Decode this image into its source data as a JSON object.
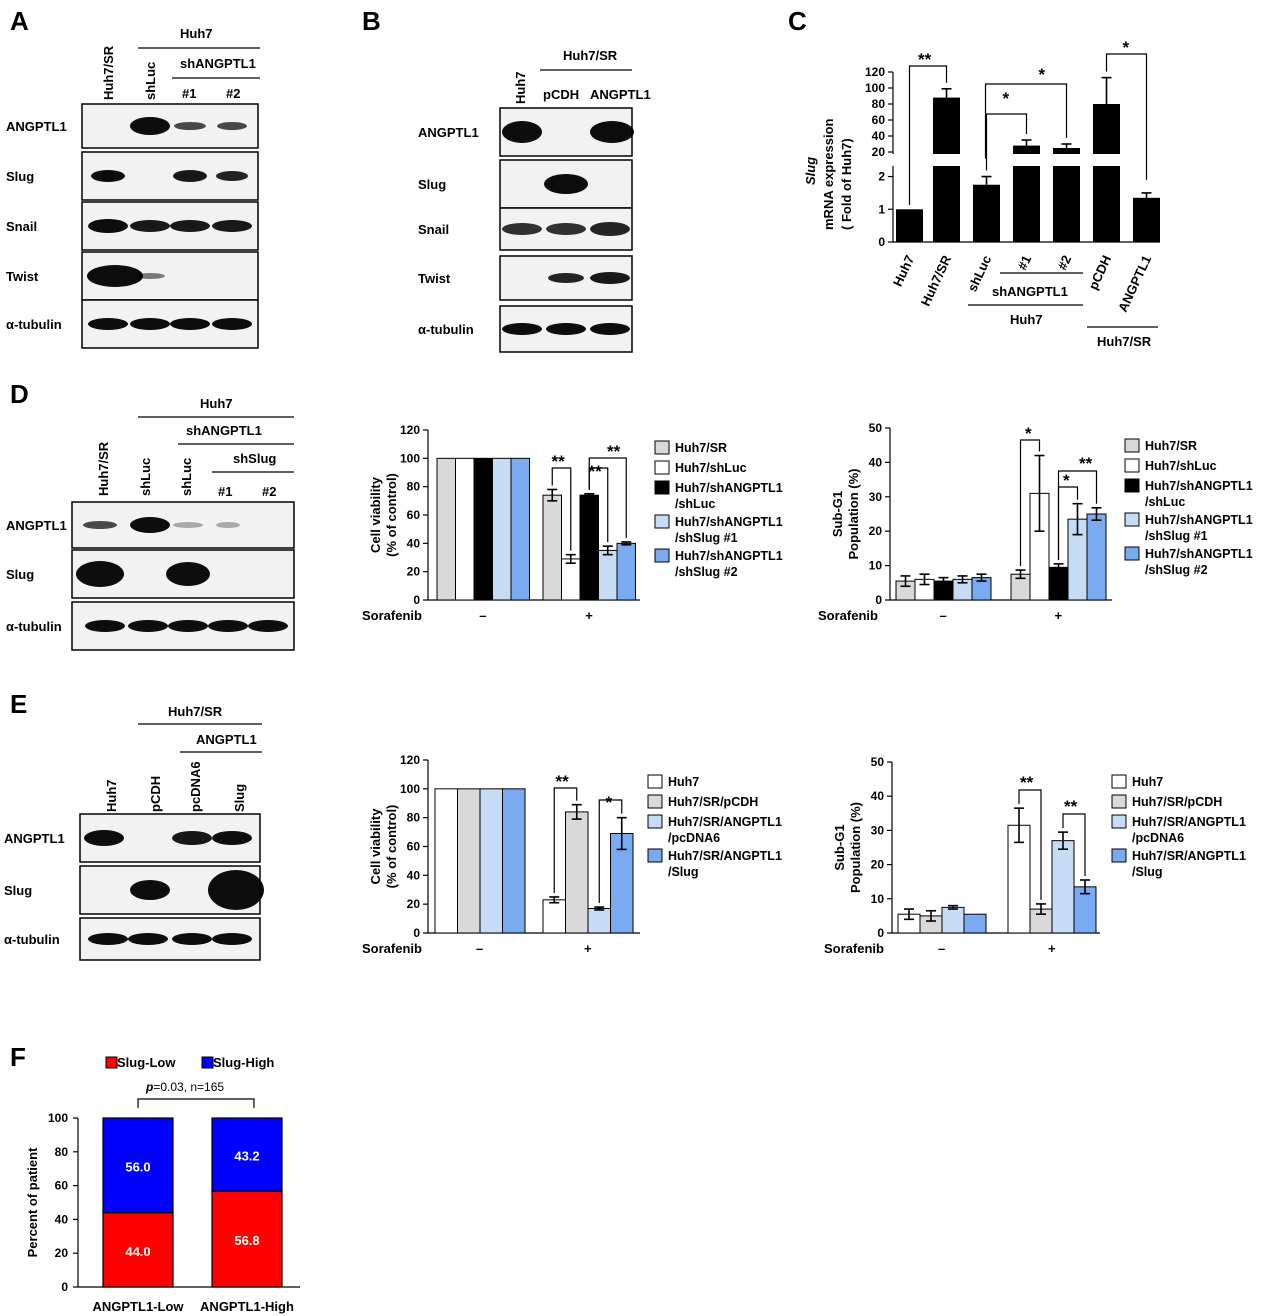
{
  "panels": {
    "A": {
      "letter": "A",
      "cell_group": "Huh7",
      "sub_group": "shANGPTL1",
      "lanes": [
        "Huh7/SR",
        "shLuc",
        "#1",
        "#2"
      ],
      "rows": [
        "ANGPTL1",
        "Slug",
        "Snail",
        "Twist",
        "α-tubulin"
      ]
    },
    "B": {
      "letter": "B",
      "cell_group": "Huh7/SR",
      "lanes": [
        "Huh7",
        "pCDH",
        "ANGPTL1"
      ],
      "rows": [
        "ANGPTL1",
        "Slug",
        "Snail",
        "Twist",
        "α-tubulin"
      ]
    },
    "D": {
      "letter": "D",
      "cell_group": "Huh7",
      "sub_group": "shANGPTL1",
      "sub_sub_group": "shSlug",
      "lanes": [
        "Huh7/SR",
        "shLuc",
        "shLuc",
        "#1",
        "#2"
      ],
      "rows": [
        "ANGPTL1",
        "Slug",
        "α-tubulin"
      ],
      "sorafenib_label": "Sorafenib",
      "minus": "–",
      "plus": "+"
    },
    "E": {
      "letter": "E",
      "cell_group": "Huh7/SR",
      "sub_group": "ANGPTL1",
      "lanes": [
        "Huh7",
        "pCDH",
        "pcDNA6",
        "Slug"
      ],
      "rows": [
        "ANGPTL1",
        "Slug",
        "α-tubulin"
      ],
      "sorafenib_label": "Sorafenib",
      "minus": "–",
      "plus": "+"
    },
    "C": {
      "letter": "C"
    },
    "F": {
      "letter": "F"
    }
  },
  "chart_data": [
    {
      "id": "C",
      "type": "bar",
      "ylabel_italic": "Slug",
      "ylabel_lines": [
        "mRNA expression",
        "( Fold of Huh7)"
      ],
      "categories": [
        "Huh7",
        "Huh7/SR",
        "shLuc",
        "#1",
        "#2",
        "pCDH",
        "ANGPTL1"
      ],
      "values": [
        1,
        88,
        1.75,
        28,
        25,
        80,
        1.35
      ],
      "errors": [
        0,
        11,
        0.25,
        7,
        5,
        33,
        0.15
      ],
      "broken_axis": true,
      "lower_ticks": [
        "0",
        "1",
        "2"
      ],
      "upper_ticks": [
        "20",
        "40",
        "60",
        "80",
        "100",
        "120"
      ],
      "group_labels": {
        "shANGPTL1": "shANGPTL1",
        "Huh7": "Huh7",
        "Huh7SR": "Huh7/SR"
      },
      "significance": [
        "**",
        "*",
        "*",
        "*"
      ],
      "color": "#000000"
    },
    {
      "id": "D-viability",
      "type": "bar",
      "ylabel_lines": [
        "Cell viability",
        "(% of control)"
      ],
      "ylim": [
        0,
        120
      ],
      "ticks": [
        "0",
        "20",
        "40",
        "60",
        "80",
        "100",
        "120"
      ],
      "series": [
        {
          "name": "Huh7/SR",
          "color": "#d9d9d9",
          "values": [
            100,
            74
          ],
          "errors": [
            0,
            4
          ]
        },
        {
          "name": "Huh7/shLuc",
          "color": "#ffffff",
          "values": [
            100,
            29
          ],
          "errors": [
            0,
            3
          ]
        },
        {
          "name": "Huh7/shANGPTL1 /shLuc",
          "color": "#000000",
          "values": [
            100,
            74
          ],
          "errors": [
            0,
            1
          ]
        },
        {
          "name": "Huh7/shANGPTL1 /shSlug #1",
          "color": "#c6dcf5",
          "values": [
            100,
            35
          ],
          "errors": [
            0,
            3
          ]
        },
        {
          "name": "Huh7/shANGPTL1 /shSlug #2",
          "color": "#7aaaf0",
          "values": [
            100,
            40
          ],
          "errors": [
            0,
            1
          ]
        }
      ],
      "legend": [
        [
          "Huh7/SR"
        ],
        [
          "Huh7/shLuc"
        ],
        [
          "Huh7/shANGPTL1",
          "/shLuc"
        ],
        [
          "Huh7/shANGPTL1",
          "/shSlug #1"
        ],
        [
          "Huh7/shANGPTL1",
          "/shSlug #2"
        ]
      ],
      "significance": [
        "**",
        "**",
        "**"
      ]
    },
    {
      "id": "D-subg1",
      "type": "bar",
      "ylabel_lines": [
        "Sub-G1",
        "Population (%)"
      ],
      "ylim": [
        0,
        50
      ],
      "ticks": [
        "0",
        "10",
        "20",
        "30",
        "40",
        "50"
      ],
      "series": [
        {
          "name": "Huh7/SR",
          "color": "#d9d9d9",
          "values": [
            5.5,
            7.5
          ],
          "errors": [
            1.5,
            1.2
          ]
        },
        {
          "name": "Huh7/shLuc",
          "color": "#ffffff",
          "values": [
            6,
            31
          ],
          "errors": [
            1.5,
            11
          ]
        },
        {
          "name": "Huh7/shANGPTL1 /shLuc",
          "color": "#000000",
          "values": [
            5.5,
            9.5
          ],
          "errors": [
            1,
            1
          ]
        },
        {
          "name": "Huh7/shANGPTL1 /shSlug #1",
          "color": "#c6dcf5",
          "values": [
            6,
            23.5
          ],
          "errors": [
            1,
            4.5
          ]
        },
        {
          "name": "Huh7/shANGPTL1 /shSlug #2",
          "color": "#7aaaf0",
          "values": [
            6.5,
            25
          ],
          "errors": [
            1,
            1.8
          ]
        }
      ],
      "legend": [
        [
          "Huh7/SR"
        ],
        [
          "Huh7/shLuc"
        ],
        [
          "Huh7/shANGPTL1",
          "/shLuc"
        ],
        [
          "Huh7/shANGPTL1",
          "/shSlug #1"
        ],
        [
          "Huh7/shANGPTL1",
          "/shSlug #2"
        ]
      ],
      "significance": [
        "*",
        "*",
        "**"
      ]
    },
    {
      "id": "E-viability",
      "type": "bar",
      "ylabel_lines": [
        "Cell viability",
        "(% of control)"
      ],
      "ylim": [
        0,
        120
      ],
      "ticks": [
        "0",
        "20",
        "40",
        "60",
        "80",
        "100",
        "120"
      ],
      "series": [
        {
          "name": "Huh7",
          "color": "#ffffff",
          "values": [
            100,
            23
          ],
          "errors": [
            0,
            2
          ]
        },
        {
          "name": "Huh7/SR/pCDH",
          "color": "#d9d9d9",
          "values": [
            100,
            84
          ],
          "errors": [
            0,
            5
          ]
        },
        {
          "name": "Huh7/SR/ANGPTL1 /pcDNA6",
          "color": "#c6dcf5",
          "values": [
            100,
            17
          ],
          "errors": [
            0,
            1
          ]
        },
        {
          "name": "Huh7/SR/ANGPTL1 /Slug",
          "color": "#7aaaf0",
          "values": [
            100,
            69
          ],
          "errors": [
            0,
            11
          ]
        }
      ],
      "legend": [
        [
          "Huh7"
        ],
        [
          "Huh7/SR/pCDH"
        ],
        [
          "Huh7/SR/ANGPTL1",
          "/pcDNA6"
        ],
        [
          "Huh7/SR/ANGPTL1",
          "/Slug"
        ]
      ],
      "significance": [
        "**",
        "*"
      ]
    },
    {
      "id": "E-subg1",
      "type": "bar",
      "ylabel_lines": [
        "Sub-G1",
        "Population (%)"
      ],
      "ylim": [
        0,
        50
      ],
      "ticks": [
        "0",
        "10",
        "20",
        "30",
        "40",
        "50"
      ],
      "series": [
        {
          "name": "Huh7",
          "color": "#ffffff",
          "values": [
            5.5,
            31.5
          ],
          "errors": [
            1.5,
            5
          ]
        },
        {
          "name": "Huh7/SR/pCDH",
          "color": "#d9d9d9",
          "values": [
            5,
            7
          ],
          "errors": [
            1.5,
            1.5
          ]
        },
        {
          "name": "Huh7/SR/ANGPTL1 /pcDNA6",
          "color": "#c6dcf5",
          "values": [
            7.5,
            27
          ],
          "errors": [
            0.5,
            2.5
          ]
        },
        {
          "name": "Huh7/SR/ANGPTL1 /Slug",
          "color": "#7aaaf0",
          "values": [
            5.5,
            13.5
          ],
          "errors": [
            0,
            2
          ]
        }
      ],
      "legend": [
        [
          "Huh7"
        ],
        [
          "Huh7/SR/pCDH"
        ],
        [
          "Huh7/SR/ANGPTL1",
          "/pcDNA6"
        ],
        [
          "Huh7/SR/ANGPTL1",
          "/Slug"
        ]
      ],
      "significance": [
        "**",
        "**"
      ]
    },
    {
      "id": "F",
      "type": "bar",
      "stacked": true,
      "ylabel": "Percent of patient",
      "ylim": [
        0,
        100
      ],
      "ticks": [
        "0",
        "20",
        "40",
        "60",
        "80",
        "100"
      ],
      "categories": [
        "ANGPTL1-Low",
        "ANGPTL1-High"
      ],
      "series": [
        {
          "name": "Slug-Low",
          "color": "#ff0000",
          "values": [
            44.0,
            56.8
          ],
          "labels": [
            "44.0",
            "56.8"
          ]
        },
        {
          "name": "Slug-High",
          "color": "#0000ff",
          "values": [
            56.0,
            43.2
          ],
          "labels": [
            "56.0",
            "43.2"
          ]
        }
      ],
      "stat_p": "p",
      "stat_rest": "=0.03, n=165"
    }
  ]
}
